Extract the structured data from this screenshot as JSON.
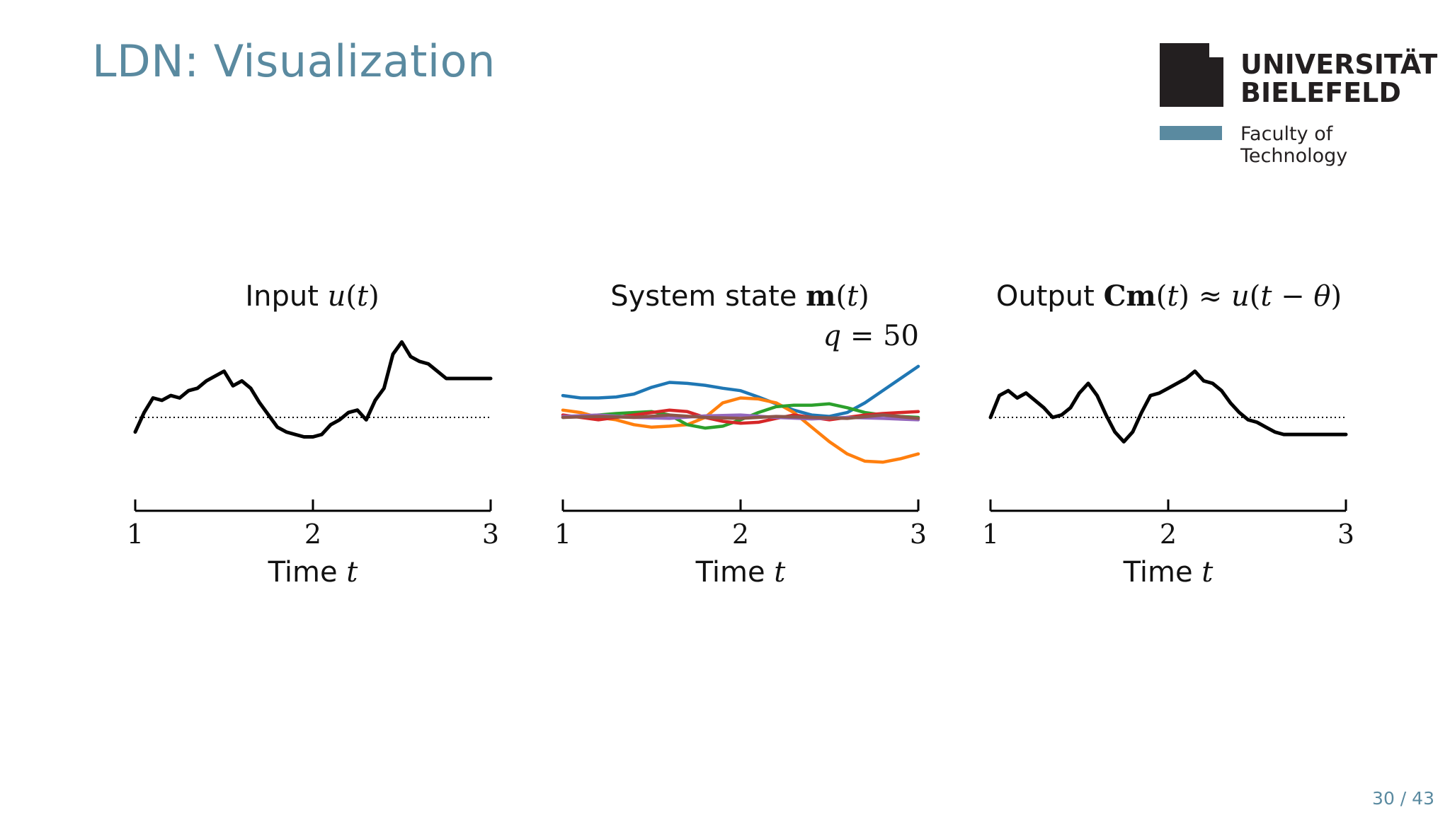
{
  "slide": {
    "title": "LDN: Visualization",
    "page": "30 / 43"
  },
  "logo": {
    "name_line1": "UNIVERSITÄT",
    "name_line2": "BIELEFELD",
    "faculty": "Faculty of Technology"
  },
  "colors": {
    "title": "#5a8aa0",
    "text": "#111111",
    "series": [
      "#1f77b4",
      "#ff7f0e",
      "#2ca02c",
      "#d62728",
      "#9467bd",
      "#8c564b"
    ]
  },
  "chart_data": [
    {
      "type": "line",
      "title": "Input u(t)",
      "xlabel": "Time t",
      "xlim": [
        1,
        3
      ],
      "ticks": [
        "1",
        "2",
        "3"
      ],
      "ylim": [
        -1.6,
        1.6
      ],
      "zero_line": "dotted",
      "series": [
        {
          "color": "#000000",
          "x": [
            1.0,
            1.05,
            1.1,
            1.15,
            1.2,
            1.25,
            1.3,
            1.35,
            1.4,
            1.45,
            1.5,
            1.55,
            1.6,
            1.65,
            1.7,
            1.75,
            1.8,
            1.85,
            1.9,
            1.95,
            2.0,
            2.05,
            2.1,
            2.15,
            2.2,
            2.25,
            2.3,
            2.35,
            2.4,
            2.45,
            2.5,
            2.55,
            2.6,
            2.65,
            2.7,
            2.75,
            2.8,
            2.85,
            2.9,
            2.95,
            3.0
          ],
          "y": [
            -0.3,
            0.1,
            0.4,
            0.35,
            0.45,
            0.4,
            0.55,
            0.6,
            0.75,
            0.85,
            0.95,
            0.65,
            0.75,
            0.6,
            0.3,
            0.05,
            -0.2,
            -0.3,
            -0.35,
            -0.4,
            -0.4,
            -0.35,
            -0.15,
            -0.05,
            0.1,
            0.15,
            -0.05,
            0.35,
            0.6,
            1.3,
            1.55,
            1.25,
            1.15,
            1.1,
            0.95,
            0.8,
            0.8,
            0.8,
            0.8,
            0.8,
            0.8
          ]
        }
      ]
    },
    {
      "type": "line",
      "title": "System state m(t)",
      "annotation": "q = 50",
      "xlabel": "Time t",
      "xlim": [
        1,
        3
      ],
      "ticks": [
        "1",
        "2",
        "3"
      ],
      "ylim": [
        -1.6,
        1.6
      ],
      "series": [
        {
          "color": "#1f77b4",
          "x": [
            1.0,
            1.1,
            1.2,
            1.3,
            1.4,
            1.5,
            1.6,
            1.7,
            1.8,
            1.9,
            2.0,
            2.1,
            2.2,
            2.3,
            2.4,
            2.5,
            2.6,
            2.7,
            2.8,
            2.9,
            3.0
          ],
          "y": [
            0.45,
            0.4,
            0.4,
            0.42,
            0.48,
            0.62,
            0.72,
            0.7,
            0.66,
            0.6,
            0.55,
            0.42,
            0.28,
            0.15,
            0.05,
            0.02,
            0.1,
            0.3,
            0.55,
            0.8,
            1.05
          ]
        },
        {
          "color": "#ff7f0e",
          "x": [
            1.0,
            1.1,
            1.2,
            1.3,
            1.4,
            1.5,
            1.6,
            1.7,
            1.8,
            1.9,
            2.0,
            2.1,
            2.2,
            2.3,
            2.4,
            2.5,
            2.6,
            2.7,
            2.8,
            2.9,
            3.0
          ],
          "y": [
            0.15,
            0.1,
            0.0,
            -0.05,
            -0.15,
            -0.2,
            -0.18,
            -0.15,
            0.0,
            0.3,
            0.4,
            0.38,
            0.3,
            0.1,
            -0.2,
            -0.5,
            -0.75,
            -0.9,
            -0.92,
            -0.85,
            -0.75
          ]
        },
        {
          "color": "#2ca02c",
          "x": [
            1.0,
            1.1,
            1.2,
            1.3,
            1.4,
            1.5,
            1.6,
            1.7,
            1.8,
            1.9,
            2.0,
            2.1,
            2.2,
            2.3,
            2.4,
            2.5,
            2.6,
            2.7,
            2.8,
            2.9,
            3.0
          ],
          "y": [
            0.0,
            0.02,
            0.05,
            0.08,
            0.1,
            0.12,
            0.05,
            -0.15,
            -0.22,
            -0.18,
            -0.05,
            0.1,
            0.22,
            0.25,
            0.25,
            0.28,
            0.2,
            0.1,
            0.05,
            0.02,
            0.0
          ]
        },
        {
          "color": "#d62728",
          "x": [
            1.0,
            1.1,
            1.2,
            1.3,
            1.4,
            1.5,
            1.6,
            1.7,
            1.8,
            1.9,
            2.0,
            2.1,
            2.2,
            2.3,
            2.4,
            2.5,
            2.6,
            2.7,
            2.8,
            2.9,
            3.0
          ],
          "y": [
            0.05,
            0.0,
            -0.05,
            0.0,
            0.05,
            0.1,
            0.15,
            0.12,
            0.0,
            -0.08,
            -0.12,
            -0.1,
            -0.02,
            0.05,
            0.0,
            -0.05,
            0.0,
            0.05,
            0.08,
            0.1,
            0.12
          ]
        },
        {
          "color": "#9467bd",
          "x": [
            1.0,
            1.2,
            1.4,
            1.6,
            1.8,
            2.0,
            2.2,
            2.4,
            2.6,
            2.8,
            3.0
          ],
          "y": [
            0.02,
            0.05,
            0.0,
            -0.02,
            0.03,
            0.05,
            0.0,
            -0.03,
            0.0,
            -0.02,
            -0.05
          ]
        },
        {
          "color": "#8c564b",
          "x": [
            1.0,
            1.2,
            1.4,
            1.6,
            1.8,
            2.0,
            2.2,
            2.4,
            2.6,
            2.8,
            3.0
          ],
          "y": [
            0.0,
            0.02,
            0.0,
            0.05,
            0.0,
            -0.02,
            0.02,
            0.0,
            -0.02,
            0.05,
            -0.02
          ]
        }
      ]
    },
    {
      "type": "line",
      "title": "Output Cm(t) ≈ u(t − θ)",
      "xlabel": "Time t",
      "xlim": [
        1,
        3
      ],
      "ticks": [
        "1",
        "2",
        "3"
      ],
      "ylim": [
        -1.6,
        1.6
      ],
      "zero_line": "dotted",
      "series": [
        {
          "color": "#000000",
          "x": [
            1.0,
            1.05,
            1.1,
            1.15,
            1.2,
            1.25,
            1.3,
            1.35,
            1.4,
            1.45,
            1.5,
            1.55,
            1.6,
            1.65,
            1.7,
            1.75,
            1.8,
            1.85,
            1.9,
            1.95,
            2.0,
            2.05,
            2.1,
            2.15,
            2.2,
            2.25,
            2.3,
            2.35,
            2.4,
            2.45,
            2.5,
            2.55,
            2.6,
            2.65,
            2.7,
            2.75,
            2.8,
            2.85,
            2.9,
            2.95,
            3.0
          ],
          "y": [
            0.0,
            0.45,
            0.55,
            0.4,
            0.5,
            0.35,
            0.2,
            0.0,
            0.05,
            0.2,
            0.5,
            0.7,
            0.45,
            0.05,
            -0.3,
            -0.5,
            -0.3,
            0.1,
            0.45,
            0.5,
            0.6,
            0.7,
            0.8,
            0.95,
            0.75,
            0.7,
            0.55,
            0.3,
            0.1,
            -0.05,
            -0.1,
            -0.2,
            -0.3,
            -0.35,
            -0.35,
            -0.35,
            -0.35,
            -0.35,
            -0.35,
            -0.35,
            -0.35
          ]
        }
      ]
    }
  ]
}
